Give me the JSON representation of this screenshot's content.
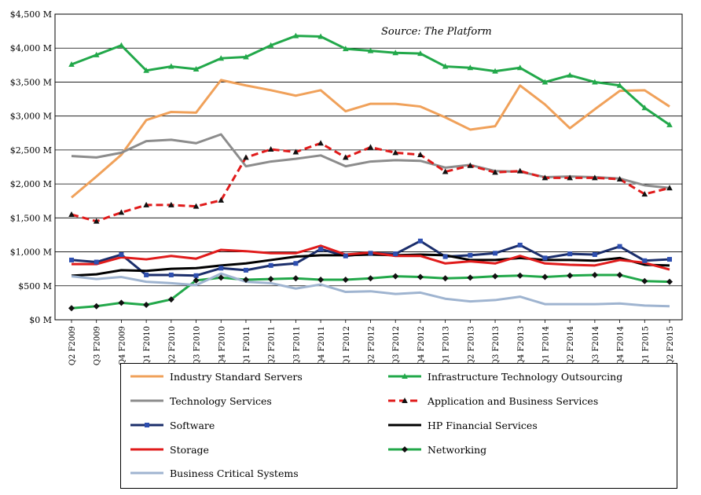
{
  "chart_data": {
    "type": "line",
    "source_note": "Source: The Platform",
    "categories": [
      "Q2 F2009",
      "Q3 F2009",
      "Q4 F2009",
      "Q1 F2010",
      "Q2 F2010",
      "Q3 F2010",
      "Q4 F2010",
      "Q1 F2011",
      "Q2 F2011",
      "Q3 F2011",
      "Q4 F2011",
      "Q1 F2012",
      "Q2 F2012",
      "Q3 F2012",
      "Q4 F2012",
      "Q1 F2013",
      "Q2 F2013",
      "Q3 F2013",
      "Q4 F2013",
      "Q1 F2014",
      "Q2 F2014",
      "Q3 F2014",
      "Q4 F2014",
      "Q1 F2015",
      "Q2 F2015"
    ],
    "ylim": [
      0,
      4500
    ],
    "yticks": [
      0,
      500,
      1000,
      1500,
      2000,
      2500,
      3000,
      3500,
      4000,
      4500
    ],
    "ytick_labels": [
      "$0 M",
      "$500 M",
      "$1,000 M",
      "$1,500 M",
      "$2,000 M",
      "$2,500 M",
      "$3,000 M",
      "$3,500 M",
      "$4,000 M",
      "$4,500 M"
    ],
    "grid": "horizontal",
    "legend_position": "bottom",
    "series": [
      {
        "name": "Industry Standard Servers",
        "color": "#f0a15a",
        "marker": "none",
        "dash": "solid",
        "values": [
          1800,
          2110,
          2430,
          2940,
          3060,
          3050,
          3530,
          3450,
          3380,
          3300,
          3380,
          3070,
          3180,
          3180,
          3140,
          2980,
          2800,
          2850,
          3450,
          3170,
          2820,
          3100,
          3370,
          3380,
          3140
        ]
      },
      {
        "name": "Infrastructure Technology Outsourcing",
        "color": "#22a84a",
        "marker": "triangle",
        "marker_color": "#22a84a",
        "dash": "solid",
        "values": [
          3760,
          3900,
          4040,
          3670,
          3730,
          3690,
          3850,
          3870,
          4040,
          4180,
          4170,
          3990,
          3960,
          3930,
          3920,
          3730,
          3710,
          3660,
          3710,
          3500,
          3600,
          3500,
          3450,
          3120,
          2870
        ]
      },
      {
        "name": "Technology Services",
        "color": "#8c8c8c",
        "marker": "none",
        "dash": "solid",
        "values": [
          2410,
          2390,
          2460,
          2630,
          2650,
          2600,
          2730,
          2260,
          2330,
          2370,
          2420,
          2260,
          2330,
          2350,
          2340,
          2240,
          2280,
          2190,
          2180,
          2100,
          2110,
          2100,
          2080,
          1980,
          1940
        ]
      },
      {
        "name": "Application and Business Services",
        "color": "#e01b1b",
        "marker": "triangle",
        "marker_color": "#111111",
        "dash": "dashed",
        "values": [
          1550,
          1450,
          1580,
          1690,
          1690,
          1670,
          1760,
          2390,
          2510,
          2470,
          2600,
          2390,
          2540,
          2460,
          2430,
          2180,
          2270,
          2170,
          2190,
          2090,
          2090,
          2090,
          2070,
          1850,
          1940
        ]
      },
      {
        "name": "Software",
        "color": "#1b2e6b",
        "marker": "square",
        "marker_color": "#2e4fb0",
        "dash": "solid",
        "values": [
          880,
          850,
          960,
          660,
          660,
          650,
          760,
          730,
          800,
          830,
          1040,
          940,
          980,
          970,
          1160,
          930,
          950,
          980,
          1100,
          910,
          970,
          960,
          1080,
          870,
          890
        ]
      },
      {
        "name": "HP Financial Services",
        "color": "#000000",
        "marker": "none",
        "dash": "solid",
        "values": [
          650,
          670,
          730,
          720,
          750,
          760,
          800,
          830,
          880,
          930,
          950,
          950,
          960,
          950,
          960,
          950,
          880,
          880,
          910,
          880,
          880,
          870,
          910,
          810,
          800
        ]
      },
      {
        "name": "Storage",
        "color": "#e01b1b",
        "marker": "none",
        "dash": "solid",
        "values": [
          820,
          820,
          920,
          890,
          940,
          900,
          1030,
          1010,
          980,
          980,
          1090,
          960,
          990,
          940,
          940,
          830,
          860,
          830,
          940,
          830,
          810,
          800,
          880,
          840,
          740
        ]
      },
      {
        "name": "Networking",
        "color": "#22a84a",
        "marker": "diamond",
        "marker_color": "#111111",
        "dash": "solid",
        "values": [
          170,
          200,
          250,
          220,
          300,
          580,
          620,
          590,
          600,
          610,
          590,
          590,
          610,
          640,
          630,
          610,
          620,
          640,
          650,
          630,
          650,
          660,
          660,
          570,
          560
        ]
      },
      {
        "name": "Business Critical Systems",
        "color": "#9fb4d0",
        "marker": "none",
        "dash": "solid",
        "values": [
          640,
          600,
          630,
          560,
          540,
          510,
          680,
          560,
          540,
          460,
          520,
          410,
          420,
          380,
          400,
          310,
          270,
          290,
          340,
          230,
          230,
          230,
          240,
          210,
          200
        ]
      }
    ],
    "legend_order": [
      0,
      1,
      2,
      3,
      4,
      5,
      6,
      7,
      8
    ]
  }
}
